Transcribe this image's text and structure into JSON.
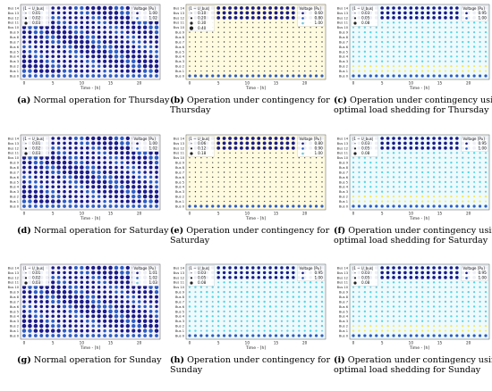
{
  "common": {
    "y_ticks": [
      "Bus 14",
      "Bus 13",
      "Bus 12",
      "Bus 11",
      "Bus 10",
      "Bus 9",
      "Bus 8",
      "Bus 7",
      "Bus 6",
      "Bus 5",
      "Bus 4",
      "Bus 3",
      "Bus 2",
      "Bus 1",
      "Bus 0"
    ],
    "x_ticks": [
      "0",
      "5",
      "10",
      "15",
      "20"
    ],
    "xlabel": "Time - [h]",
    "legend_title_left": "|1 − U_bus|",
    "legend_title_right": "Voltage [Pu]"
  },
  "panels": [
    {
      "letter": "(a)",
      "line1": "Normal operation for Thursday",
      "line2": "",
      "legend_left": [
        "0.01",
        "0.02",
        "0.03"
      ],
      "legend_right": [
        "1.00",
        "1.02"
      ],
      "scenario": "normal"
    },
    {
      "letter": "(b)",
      "line1": "Operation under contingency for",
      "line2": "Thursday",
      "legend_left": [
        "0.10",
        "0.20",
        "0.30",
        "0.40"
      ],
      "legend_right": [
        "0.60",
        "0.80",
        "1.00"
      ],
      "scenario": "contingency_strong"
    },
    {
      "letter": "(c)",
      "line1": "Operation under contingency using",
      "line2": "optimal load shedding for Thursday",
      "legend_left": [
        "0.03",
        "0.05",
        "0.08"
      ],
      "legend_right": [
        "0.95",
        "1.00"
      ],
      "scenario": "shedding"
    },
    {
      "letter": "(d)",
      "line1": "Normal operation for Saturday",
      "line2": "",
      "legend_left": [
        "0.01",
        "0.02",
        "0.03"
      ],
      "legend_right": [
        "1.00",
        "1.02"
      ],
      "scenario": "normal"
    },
    {
      "letter": "(e)",
      "line1": "Operation under contingency for",
      "line2": "Saturday",
      "legend_left": [
        "0.06",
        "0.12",
        "0.18"
      ],
      "legend_right": [
        "0.80",
        "0.90",
        "1.00"
      ],
      "scenario": "contingency_strong"
    },
    {
      "letter": "(f)",
      "line1": "Operation under contingency using",
      "line2": "optimal load shedding for Saturday",
      "legend_left": [
        "0.03",
        "0.05",
        "0.08"
      ],
      "legend_right": [
        "0.95",
        "1.00"
      ],
      "scenario": "shedding"
    },
    {
      "letter": "(g)",
      "line1": "Normal operation for Sunday",
      "line2": "",
      "legend_left": [
        "0.01",
        "0.02",
        "0.03"
      ],
      "legend_right": [
        "1.01",
        "1.02",
        "1.03"
      ],
      "scenario": "normal"
    },
    {
      "letter": "(h)",
      "line1": "Operation under contingency for",
      "line2": "Sunday",
      "legend_left": [
        "0.03",
        "0.05",
        "0.08"
      ],
      "legend_right": [
        "0.95",
        "1.00"
      ],
      "scenario": "contingency_mild"
    },
    {
      "letter": "(i)",
      "line1": "Operation under contingency using",
      "line2": "optimal load shedding for Sunday",
      "legend_left": [
        "0.03",
        "0.05",
        "0.08"
      ],
      "legend_right": [
        "0.95",
        "1.00"
      ],
      "scenario": "shedding"
    }
  ],
  "chart_data": [
    {
      "type": "scatter",
      "xlabel": "Time - [h]",
      "x": [
        0,
        1,
        2,
        3,
        4,
        5,
        6,
        7,
        8,
        9,
        10,
        11,
        12,
        13,
        14,
        15,
        16,
        17,
        18,
        19,
        20,
        21,
        22,
        23
      ],
      "buses": 15
    },
    {
      "type": "scatter",
      "xlabel": "Time - [h]",
      "x": [
        0,
        1,
        2,
        3,
        4,
        5,
        6,
        7,
        8,
        9,
        10,
        11,
        12,
        13,
        14,
        15,
        16,
        17,
        18,
        19,
        20,
        21,
        22,
        23
      ],
      "buses": 15
    },
    {
      "type": "scatter",
      "xlabel": "Time - [h]",
      "x": [
        0,
        1,
        2,
        3,
        4,
        5,
        6,
        7,
        8,
        9,
        10,
        11,
        12,
        13,
        14,
        15,
        16,
        17,
        18,
        19,
        20,
        21,
        22,
        23
      ],
      "buses": 15
    },
    {
      "type": "scatter",
      "xlabel": "Time - [h]",
      "x": [
        0,
        1,
        2,
        3,
        4,
        5,
        6,
        7,
        8,
        9,
        10,
        11,
        12,
        13,
        14,
        15,
        16,
        17,
        18,
        19,
        20,
        21,
        22,
        23
      ],
      "buses": 15
    },
    {
      "type": "scatter",
      "xlabel": "Time - [h]",
      "x": [
        0,
        1,
        2,
        3,
        4,
        5,
        6,
        7,
        8,
        9,
        10,
        11,
        12,
        13,
        14,
        15,
        16,
        17,
        18,
        19,
        20,
        21,
        22,
        23
      ],
      "buses": 15
    },
    {
      "type": "scatter",
      "xlabel": "Time - [h]",
      "x": [
        0,
        1,
        2,
        3,
        4,
        5,
        6,
        7,
        8,
        9,
        10,
        11,
        12,
        13,
        14,
        15,
        16,
        17,
        18,
        19,
        20,
        21,
        22,
        23
      ],
      "buses": 15
    },
    {
      "type": "scatter",
      "xlabel": "Time - [h]",
      "x": [
        0,
        1,
        2,
        3,
        4,
        5,
        6,
        7,
        8,
        9,
        10,
        11,
        12,
        13,
        14,
        15,
        16,
        17,
        18,
        19,
        20,
        21,
        22,
        23
      ],
      "buses": 15
    },
    {
      "type": "scatter",
      "xlabel": "Time - [h]",
      "x": [
        0,
        1,
        2,
        3,
        4,
        5,
        6,
        7,
        8,
        9,
        10,
        11,
        12,
        13,
        14,
        15,
        16,
        17,
        18,
        19,
        20,
        21,
        22,
        23
      ],
      "buses": 15
    },
    {
      "type": "scatter",
      "xlabel": "Time - [h]",
      "x": [
        0,
        1,
        2,
        3,
        4,
        5,
        6,
        7,
        8,
        9,
        10,
        11,
        12,
        13,
        14,
        15,
        16,
        17,
        18,
        19,
        20,
        21,
        22,
        23
      ],
      "buses": 15
    }
  ],
  "colors": {
    "dot_dark": "#1a1a8a",
    "dot_mid": "#2c5cc4",
    "dot_light": "#6cc8e0",
    "dot_yellow": "#f2e85c",
    "dot_cyan": "#4fd6e6",
    "bg_normal": "#f4f4fb",
    "bg_yellow": "#fffbe0",
    "bg_cyan": "#eefafc"
  }
}
